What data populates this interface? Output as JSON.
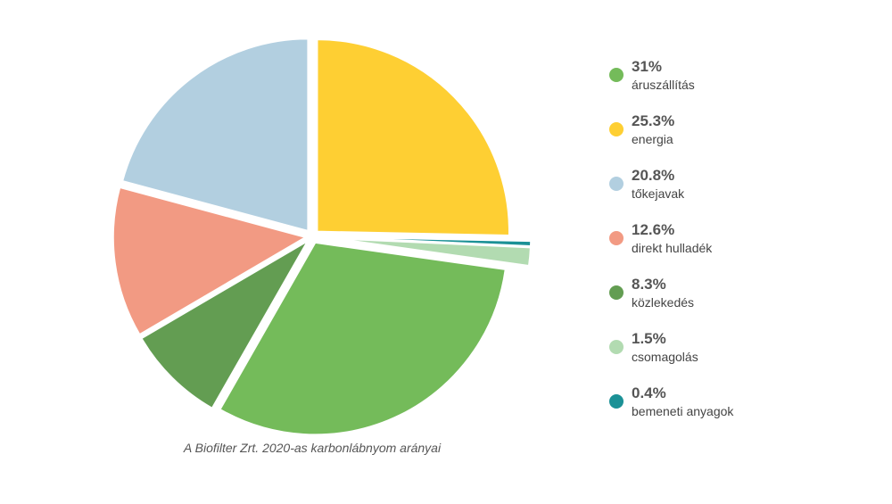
{
  "chart_data": {
    "type": "pie",
    "title": "A Biofilter Zrt. 2020-as karbonlábnyom arányai",
    "unit": "%",
    "slices": [
      {
        "label": "energia",
        "value": 25.3,
        "value_label": "25.3%",
        "color": "#fecf33"
      },
      {
        "label": "bemeneti anyagok",
        "value": 0.4,
        "value_label": "0.4%",
        "color": "#1b9196"
      },
      {
        "label": "csomagolás",
        "value": 1.5,
        "value_label": "1.5%",
        "color": "#b2dbb1"
      },
      {
        "label": "áruszállítás",
        "value": 31,
        "value_label": "31%",
        "color": "#74bb5a"
      },
      {
        "label": "közlekedés",
        "value": 8.3,
        "value_label": "8.3%",
        "color": "#639d52"
      },
      {
        "label": "direkt hulladék",
        "value": 12.6,
        "value_label": "12.6%",
        "color": "#f29a83"
      },
      {
        "label": "tőkejavak",
        "value": 20.8,
        "value_label": "20.8%",
        "color": "#b2cfe0"
      }
    ],
    "legend": [
      {
        "label": "áruszállítás",
        "value_label": "31%",
        "color": "#74bb5a"
      },
      {
        "label": "energia",
        "value_label": "25.3%",
        "color": "#fecf33"
      },
      {
        "label": "tőkejavak",
        "value_label": "20.8%",
        "color": "#b2cfe0"
      },
      {
        "label": "direkt hulladék",
        "value_label": "12.6%",
        "color": "#f29a83"
      },
      {
        "label": "közlekedés",
        "value_label": "8.3%",
        "color": "#639d52"
      },
      {
        "label": "csomagolás",
        "value_label": "1.5%",
        "color": "#b2dbb1"
      },
      {
        "label": "bemeneti anyagok",
        "value_label": "0.4%",
        "color": "#1b9196"
      }
    ],
    "legend_position": "right"
  }
}
